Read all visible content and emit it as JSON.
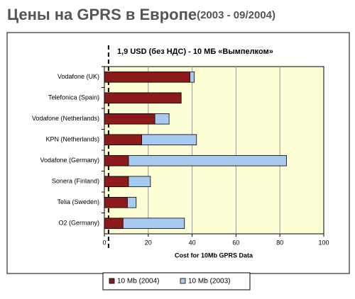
{
  "chart_data": {
    "type": "bar",
    "title": "Цены на GPRS в Европе",
    "subtitle": "(2003 - 09/2004)",
    "annotation": {
      "text": "1,9 USD (без НДС) - 10 МБ «Вымпелком»",
      "value": 1.9
    },
    "x_label": "Cost for 10Mb GPRS Data",
    "categories": [
      "Vodafone (UK)",
      "Telefonica (Spain)",
      "Vodafone (Netherlands)",
      "KPN (Netherlands)",
      "Vodafone (Germany)",
      "Sonera (Finland)",
      "Telia (Sweden)",
      "O2 (Germany)"
    ],
    "series": [
      {
        "name": "10 Mb (2004)",
        "color": "#8b1a1a",
        "values": [
          39,
          35,
          23,
          17,
          11,
          11,
          10.5,
          8.5
        ]
      },
      {
        "name": "10 Mb (2003)",
        "color": "#a6caf0",
        "values": [
          41,
          35,
          29.5,
          42,
          83,
          21,
          14.5,
          36.5
        ]
      }
    ],
    "xlim": [
      0,
      100
    ],
    "xticks": [
      0,
      20,
      40,
      60,
      80,
      100
    ],
    "grid": true
  }
}
